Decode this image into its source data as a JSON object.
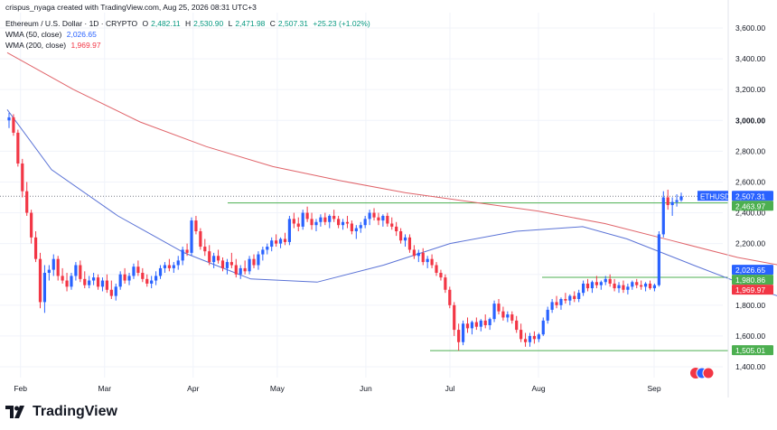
{
  "header": {
    "credit": "crispus_nyaga created with TradingView.com, Aug 25, 2026 08:31 UTC+3",
    "symbol": "Ethereum / U.S. Dollar · 1D · CRYPTO",
    "o_label": "O",
    "o": "2,482.11",
    "h_label": "H",
    "h": "2,530.90",
    "l_label": "L",
    "l": "2,471.98",
    "c_label": "C",
    "c": "2,507.31",
    "change": "+25.23 (+1.02%)",
    "wma50_label": "WMA (50, close)",
    "wma50_value": "2,026.65",
    "wma200_label": "WMA (200, close)",
    "wma200_value": "1,969.97"
  },
  "logo_text": "TradingView",
  "colors": {
    "up": "#2962ff",
    "down": "#f23645",
    "wma50": "#5b73d6",
    "wma200": "#e0646a",
    "support": "#4caf50",
    "grid": "#f0f3fa"
  },
  "chart_data": {
    "type": "candlestick",
    "symbol": "ETHUSD",
    "x_ticks": [
      "Feb",
      "Mar",
      "Apr",
      "May",
      "Jun",
      "Jul",
      "Aug",
      "Sep"
    ],
    "y_ticks": [
      "1,400.00",
      "1,600.00",
      "1,800.00",
      "2,000.00",
      "2,200.00",
      "2,400.00",
      "2,600.00",
      "2,800.00",
      "3,000.00",
      "3,200.00",
      "3,400.00",
      "3,600.00"
    ],
    "y_range": [
      1320,
      3680
    ],
    "price_labels": [
      {
        "text": "ETHUSD",
        "value": 2507.31,
        "color": "#2962ff"
      },
      {
        "text": "2,507.31",
        "value": 2507.31,
        "color": "#2962ff"
      },
      {
        "text": "2,463.97",
        "value": 2463.97,
        "color": "#4caf50"
      },
      {
        "text": "2,026.65",
        "value": 2026.65,
        "color": "#2962ff"
      },
      {
        "text": "1,980.86",
        "value": 1980.86,
        "color": "#4caf50"
      },
      {
        "text": "1,969.97",
        "value": 1969.97,
        "color": "#f23645"
      },
      {
        "text": "1,505.01",
        "value": 1505.01,
        "color": "#4caf50"
      }
    ],
    "horizontal_lines": [
      {
        "value": 2463.97,
        "color": "#4caf50"
      },
      {
        "value": 1980.86,
        "color": "#4caf50"
      },
      {
        "value": 1505.01,
        "color": "#4caf50"
      },
      {
        "value": 2507.31,
        "color": "#787b86",
        "dotted": true
      }
    ],
    "wma50": [
      [
        0,
        3070
      ],
      [
        10,
        2680
      ],
      [
        25,
        2380
      ],
      [
        40,
        2140
      ],
      [
        55,
        1970
      ],
      [
        70,
        1950
      ],
      [
        85,
        2060
      ],
      [
        100,
        2200
      ],
      [
        115,
        2280
      ],
      [
        130,
        2310
      ],
      [
        140,
        2230
      ],
      [
        155,
        2060
      ],
      [
        165,
        1950
      ],
      [
        175,
        1850
      ],
      [
        185,
        1830
      ],
      [
        195,
        1850
      ],
      [
        205,
        1880
      ],
      [
        215,
        1900
      ],
      [
        222,
        1930
      ],
      [
        226,
        2050
      ]
    ],
    "wma200": [
      [
        0,
        3440
      ],
      [
        15,
        3200
      ],
      [
        30,
        2990
      ],
      [
        45,
        2830
      ],
      [
        60,
        2700
      ],
      [
        75,
        2610
      ],
      [
        90,
        2530
      ],
      [
        105,
        2470
      ],
      [
        120,
        2410
      ],
      [
        135,
        2330
      ],
      [
        150,
        2220
      ],
      [
        165,
        2110
      ],
      [
        180,
        2030
      ],
      [
        195,
        1990
      ],
      [
        210,
        1975
      ],
      [
        224,
        1975
      ]
    ],
    "candles": [
      [
        0,
        3000,
        3050,
        2950,
        3020
      ],
      [
        1,
        3020,
        3040,
        2900,
        2920
      ],
      [
        2,
        2920,
        2940,
        2700,
        2720
      ],
      [
        3,
        2720,
        2750,
        2500,
        2540
      ],
      [
        4,
        2540,
        2600,
        2380,
        2400
      ],
      [
        5,
        2400,
        2420,
        2200,
        2240
      ],
      [
        6,
        2240,
        2280,
        2080,
        2100
      ],
      [
        7,
        2100,
        2140,
        1780,
        1820
      ],
      [
        8,
        1820,
        2060,
        1750,
        2010
      ],
      [
        9,
        2010,
        2060,
        1960,
        2030
      ],
      [
        10,
        2030,
        2130,
        1990,
        2100
      ],
      [
        11,
        2100,
        2120,
        1960,
        1990
      ],
      [
        12,
        1990,
        2040,
        1940,
        1960
      ],
      [
        13,
        1960,
        2010,
        1890,
        1920
      ],
      [
        14,
        1920,
        2010,
        1900,
        1990
      ],
      [
        15,
        1990,
        2080,
        1960,
        2060
      ],
      [
        16,
        2060,
        2090,
        1950,
        1970
      ],
      [
        17,
        1970,
        2020,
        1910,
        1930
      ],
      [
        18,
        1930,
        1990,
        1910,
        1960
      ],
      [
        19,
        1960,
        2010,
        1930,
        1980
      ],
      [
        20,
        1980,
        2000,
        1900,
        1920
      ],
      [
        21,
        1920,
        1980,
        1890,
        1960
      ],
      [
        22,
        1960,
        2000,
        1880,
        1900
      ],
      [
        23,
        1900,
        1960,
        1840,
        1860
      ],
      [
        24,
        1860,
        1940,
        1830,
        1920
      ],
      [
        25,
        1920,
        2020,
        1900,
        2000
      ],
      [
        26,
        2000,
        2040,
        1940,
        1960
      ],
      [
        27,
        1960,
        2010,
        1930,
        1990
      ],
      [
        28,
        1990,
        2070,
        1970,
        2050
      ],
      [
        29,
        2050,
        2090,
        1990,
        2010
      ],
      [
        30,
        2010,
        2040,
        1950,
        1970
      ],
      [
        31,
        1970,
        2000,
        1920,
        1940
      ],
      [
        32,
        1940,
        1990,
        1910,
        1960
      ],
      [
        33,
        1960,
        2020,
        1930,
        1990
      ],
      [
        34,
        1990,
        2060,
        1970,
        2040
      ],
      [
        35,
        2040,
        2080,
        2010,
        2060
      ],
      [
        36,
        2060,
        2100,
        2020,
        2040
      ],
      [
        37,
        2040,
        2080,
        2010,
        2060
      ],
      [
        38,
        2060,
        2120,
        2030,
        2090
      ],
      [
        39,
        2090,
        2180,
        2060,
        2160
      ],
      [
        40,
        2160,
        2200,
        2120,
        2140
      ],
      [
        41,
        2140,
        2370,
        2120,
        2350
      ],
      [
        42,
        2350,
        2380,
        2260,
        2280
      ],
      [
        43,
        2280,
        2300,
        2160,
        2180
      ],
      [
        44,
        2180,
        2230,
        2120,
        2150
      ],
      [
        45,
        2150,
        2190,
        2060,
        2080
      ],
      [
        46,
        2080,
        2140,
        2040,
        2120
      ],
      [
        47,
        2120,
        2160,
        2070,
        2090
      ],
      [
        48,
        2090,
        2110,
        2020,
        2040
      ],
      [
        49,
        2040,
        2100,
        2000,
        2080
      ],
      [
        50,
        2080,
        2140,
        2040,
        2060
      ],
      [
        51,
        2060,
        2100,
        1980,
        2000
      ],
      [
        52,
        2000,
        2060,
        1970,
        2040
      ],
      [
        53,
        2040,
        2090,
        2000,
        2020
      ],
      [
        54,
        2020,
        2120,
        2000,
        2100
      ],
      [
        55,
        2100,
        2130,
        2040,
        2060
      ],
      [
        56,
        2060,
        2150,
        2030,
        2130
      ],
      [
        57,
        2130,
        2180,
        2090,
        2160
      ],
      [
        58,
        2160,
        2200,
        2130,
        2180
      ],
      [
        59,
        2180,
        2240,
        2150,
        2220
      ],
      [
        60,
        2220,
        2260,
        2180,
        2200
      ],
      [
        61,
        2200,
        2240,
        2170,
        2230
      ],
      [
        62,
        2230,
        2270,
        2190,
        2210
      ],
      [
        63,
        2210,
        2380,
        2190,
        2360
      ],
      [
        64,
        2360,
        2400,
        2300,
        2330
      ],
      [
        65,
        2330,
        2370,
        2280,
        2310
      ],
      [
        66,
        2310,
        2420,
        2290,
        2400
      ],
      [
        67,
        2400,
        2440,
        2340,
        2360
      ],
      [
        68,
        2360,
        2400,
        2290,
        2320
      ],
      [
        69,
        2320,
        2360,
        2280,
        2340
      ],
      [
        70,
        2340,
        2390,
        2310,
        2370
      ],
      [
        71,
        2370,
        2400,
        2320,
        2340
      ],
      [
        72,
        2340,
        2390,
        2300,
        2380
      ],
      [
        73,
        2380,
        2420,
        2340,
        2360
      ],
      [
        74,
        2360,
        2380,
        2300,
        2320
      ],
      [
        75,
        2320,
        2360,
        2290,
        2340
      ],
      [
        76,
        2340,
        2380,
        2300,
        2330
      ],
      [
        77,
        2330,
        2350,
        2260,
        2280
      ],
      [
        78,
        2280,
        2320,
        2230,
        2300
      ],
      [
        79,
        2300,
        2340,
        2270,
        2320
      ],
      [
        80,
        2320,
        2380,
        2300,
        2360
      ],
      [
        81,
        2360,
        2420,
        2320,
        2400
      ],
      [
        82,
        2400,
        2430,
        2350,
        2370
      ],
      [
        83,
        2370,
        2400,
        2320,
        2350
      ],
      [
        84,
        2350,
        2390,
        2310,
        2380
      ],
      [
        85,
        2380,
        2400,
        2310,
        2330
      ],
      [
        86,
        2330,
        2370,
        2290,
        2310
      ],
      [
        87,
        2310,
        2340,
        2250,
        2280
      ],
      [
        88,
        2280,
        2300,
        2200,
        2220
      ],
      [
        89,
        2220,
        2260,
        2180,
        2240
      ],
      [
        90,
        2240,
        2260,
        2140,
        2160
      ],
      [
        91,
        2160,
        2190,
        2100,
        2120
      ],
      [
        92,
        2120,
        2160,
        2080,
        2140
      ],
      [
        93,
        2140,
        2170,
        2060,
        2080
      ],
      [
        94,
        2080,
        2120,
        2040,
        2100
      ],
      [
        95,
        2100,
        2130,
        2040,
        2060
      ],
      [
        96,
        2060,
        2080,
        1990,
        2010
      ],
      [
        97,
        2010,
        2030,
        1960,
        1980
      ],
      [
        98,
        1980,
        2000,
        1880,
        1900
      ],
      [
        99,
        1900,
        1920,
        1780,
        1800
      ],
      [
        100,
        1800,
        1820,
        1600,
        1640
      ],
      [
        101,
        1640,
        1680,
        1505,
        1560
      ],
      [
        102,
        1560,
        1700,
        1540,
        1680
      ],
      [
        103,
        1680,
        1720,
        1620,
        1650
      ],
      [
        104,
        1650,
        1700,
        1610,
        1690
      ],
      [
        105,
        1690,
        1720,
        1640,
        1660
      ],
      [
        106,
        1660,
        1710,
        1630,
        1700
      ],
      [
        107,
        1700,
        1740,
        1650,
        1670
      ],
      [
        108,
        1670,
        1720,
        1640,
        1710
      ],
      [
        109,
        1710,
        1830,
        1690,
        1810
      ],
      [
        110,
        1810,
        1840,
        1740,
        1760
      ],
      [
        111,
        1760,
        1790,
        1700,
        1720
      ],
      [
        112,
        1720,
        1760,
        1690,
        1740
      ],
      [
        113,
        1740,
        1760,
        1680,
        1700
      ],
      [
        114,
        1700,
        1730,
        1620,
        1640
      ],
      [
        115,
        1640,
        1680,
        1560,
        1580
      ],
      [
        116,
        1580,
        1620,
        1530,
        1560
      ],
      [
        117,
        1560,
        1620,
        1530,
        1600
      ],
      [
        118,
        1600,
        1630,
        1550,
        1580
      ],
      [
        119,
        1580,
        1620,
        1560,
        1610
      ],
      [
        120,
        1610,
        1720,
        1600,
        1700
      ],
      [
        121,
        1700,
        1790,
        1680,
        1770
      ],
      [
        122,
        1770,
        1840,
        1750,
        1820
      ],
      [
        123,
        1820,
        1860,
        1780,
        1800
      ],
      [
        124,
        1800,
        1850,
        1770,
        1840
      ],
      [
        125,
        1840,
        1880,
        1810,
        1830
      ],
      [
        126,
        1830,
        1870,
        1800,
        1860
      ],
      [
        127,
        1860,
        1890,
        1820,
        1840
      ],
      [
        128,
        1840,
        1900,
        1820,
        1880
      ],
      [
        129,
        1880,
        1960,
        1860,
        1940
      ],
      [
        130,
        1940,
        1970,
        1890,
        1910
      ],
      [
        131,
        1910,
        1960,
        1880,
        1950
      ],
      [
        132,
        1950,
        1990,
        1910,
        1930
      ],
      [
        133,
        1930,
        1960,
        1900,
        1950
      ],
      [
        134,
        1950,
        1990,
        1930,
        1970
      ],
      [
        135,
        1970,
        2000,
        1920,
        1940
      ],
      [
        136,
        1940,
        1970,
        1890,
        1910
      ],
      [
        137,
        1910,
        1950,
        1880,
        1930
      ],
      [
        138,
        1930,
        1960,
        1880,
        1900
      ],
      [
        139,
        1900,
        1940,
        1870,
        1920
      ],
      [
        140,
        1920,
        1960,
        1900,
        1950
      ],
      [
        141,
        1950,
        1970,
        1910,
        1930
      ],
      [
        142,
        1930,
        1960,
        1900,
        1920
      ],
      [
        143,
        1920,
        1950,
        1890,
        1940
      ],
      [
        144,
        1940,
        1960,
        1900,
        1910
      ],
      [
        145,
        1910,
        1940,
        1890,
        1930
      ],
      [
        146,
        1930,
        2280,
        1920,
        2260
      ],
      [
        147,
        2260,
        2540,
        2240,
        2500
      ],
      [
        148,
        2500,
        2550,
        2420,
        2450
      ],
      [
        149,
        2450,
        2500,
        2380,
        2470
      ],
      [
        150,
        2470,
        2520,
        2440,
        2482
      ],
      [
        151,
        2482,
        2531,
        2472,
        2507
      ]
    ]
  }
}
